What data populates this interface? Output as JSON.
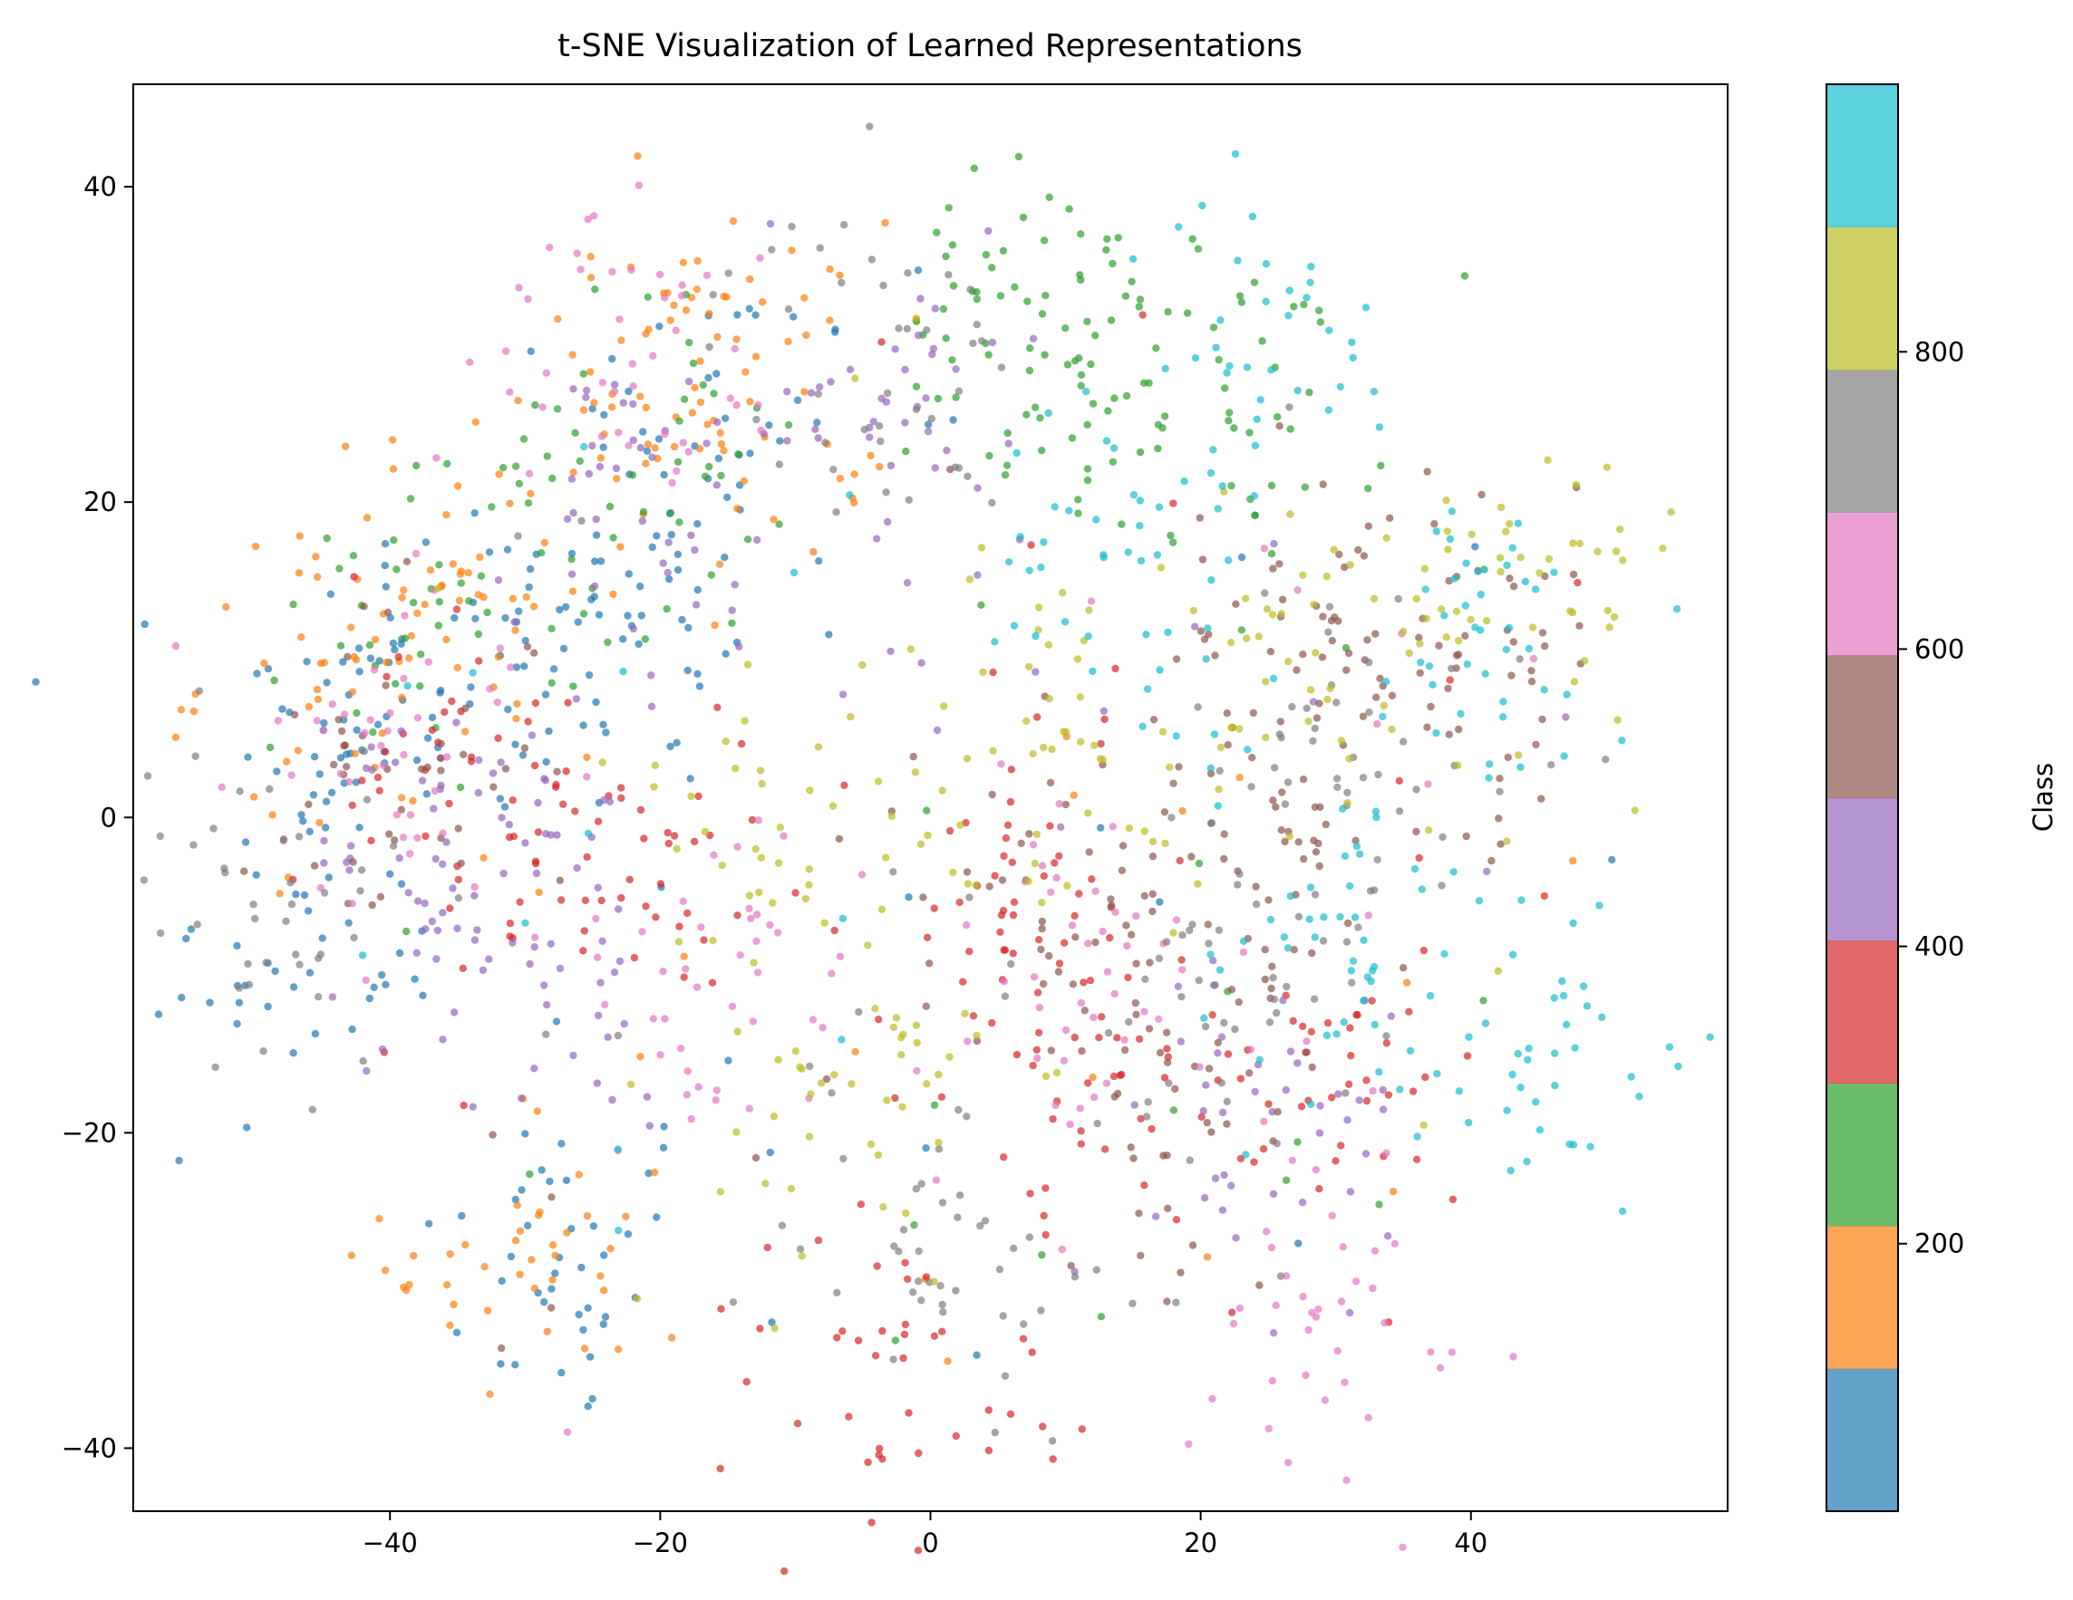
{
  "chart_data": {
    "type": "scatter",
    "title": "t-SNE Visualization of Learned Representations",
    "xlabel": "",
    "ylabel": "",
    "xlim": [
      -59,
      59
    ],
    "ylim": [
      -44,
      46.5
    ],
    "xticks": [
      -40,
      -20,
      0,
      20,
      40
    ],
    "yticks": [
      -40,
      -20,
      0,
      20,
      40
    ],
    "xtick_labels": [
      "−40",
      "−20",
      "0",
      "20",
      "40"
    ],
    "ytick_labels": [
      "−40",
      "−20",
      "0",
      "20",
      "40"
    ],
    "grid": false,
    "colormap": "tab10",
    "colors": [
      "#1f77b4",
      "#ff7f0e",
      "#2ca02c",
      "#d62728",
      "#9467bd",
      "#8c564b",
      "#e377c2",
      "#7f7f7f",
      "#bcbd22",
      "#17becf"
    ],
    "point_alpha": 0.7,
    "colorbar": {
      "label": "Class",
      "range": [
        20,
        980
      ],
      "ticks": [
        200,
        400,
        600,
        800
      ],
      "tick_labels": [
        "200",
        "400",
        "600",
        "800"
      ]
    },
    "point_count_approx": 2000,
    "note_points": "Approximately 2000 scatter points; class cluster centers (x, y) listed per class",
    "clusters": [
      {
        "class": 0,
        "centers": [
          [
            -27,
            -28
          ],
          [
            -33,
            10
          ],
          [
            -44,
            6
          ],
          [
            -22,
            12
          ],
          [
            -16,
            24
          ],
          [
            -47,
            -9
          ]
        ]
      },
      {
        "class": 1,
        "centers": [
          [
            -29,
            -28
          ],
          [
            -35,
            14
          ],
          [
            -14,
            27
          ],
          [
            -21,
            28
          ],
          [
            -43,
            9
          ]
        ]
      },
      {
        "class": 2,
        "centers": [
          [
            7,
            31
          ],
          [
            23,
            27
          ],
          [
            -22,
            22
          ],
          [
            -36,
            14
          ],
          [
            12,
            28
          ]
        ]
      },
      {
        "class": 3,
        "centers": [
          [
            -22,
            -3
          ],
          [
            -2,
            -35
          ],
          [
            5,
            -6
          ],
          [
            30,
            -18
          ],
          [
            12,
            -15
          ],
          [
            -35,
            3
          ]
        ]
      },
      {
        "class": 4,
        "centers": [
          [
            -2,
            25
          ],
          [
            -22,
            20
          ],
          [
            -36,
            0
          ],
          [
            25,
            -18
          ],
          [
            -30,
            -10
          ]
        ]
      },
      {
        "class": 5,
        "centers": [
          [
            40,
            10
          ],
          [
            30,
            12
          ],
          [
            10,
            -5
          ],
          [
            20,
            -15
          ],
          [
            -40,
            3
          ],
          [
            25,
            0
          ]
        ]
      },
      {
        "class": 6,
        "centers": [
          [
            -15,
            -10
          ],
          [
            -40,
            3
          ],
          [
            31,
            -30
          ],
          [
            10,
            -10
          ],
          [
            -22,
            30
          ]
        ]
      },
      {
        "class": 7,
        "centers": [
          [
            -49,
            -5
          ],
          [
            22,
            -10
          ],
          [
            1,
            -26
          ],
          [
            -5,
            28
          ],
          [
            30,
            5
          ]
        ]
      },
      {
        "class": 8,
        "centers": [
          [
            45,
            15
          ],
          [
            -5,
            -18
          ],
          [
            30,
            10
          ],
          [
            -10,
            0
          ],
          [
            10,
            5
          ]
        ]
      },
      {
        "class": 9,
        "centers": [
          [
            40,
            10
          ],
          [
            25,
            29
          ],
          [
            15,
            15
          ],
          [
            46,
            -14
          ],
          [
            30,
            -10
          ]
        ]
      }
    ]
  }
}
